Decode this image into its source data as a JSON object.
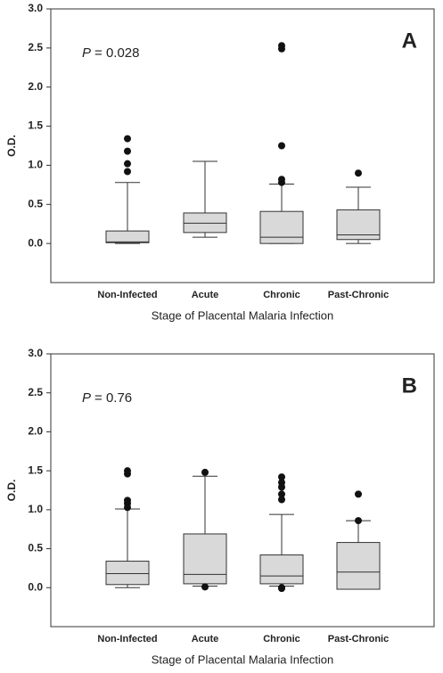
{
  "chart_data": [
    {
      "type": "box",
      "panel_label": "A",
      "annotation_variable": "P",
      "annotation_value": "= 0.028",
      "y_label": "O.D.",
      "x_label": "Stage of Placental Malaria Infection",
      "categories": [
        "Non-Infected",
        "Acute",
        "Chronic",
        "Past-Chronic"
      ],
      "color": "#d9d9d9",
      "boxes": [
        {
          "low": 0.0,
          "q1": 0.01,
          "median": 0.02,
          "q3": 0.16,
          "high": 0.78,
          "outliers": [
            0.92,
            1.02,
            1.18,
            1.34
          ]
        },
        {
          "low": 0.08,
          "q1": 0.14,
          "median": 0.26,
          "q3": 0.39,
          "high": 1.05,
          "outliers": []
        },
        {
          "low": 0.0,
          "q1": 0.0,
          "median": 0.08,
          "q3": 0.41,
          "high": 0.76,
          "outliers": [
            0.78,
            0.82,
            1.25,
            2.49,
            2.53
          ]
        },
        {
          "low": 0.0,
          "q1": 0.05,
          "median": 0.11,
          "q3": 0.43,
          "high": 0.72,
          "outliers": [
            0.9
          ]
        }
      ],
      "ylim": [
        -0.5,
        3.0
      ],
      "yticks": [
        {
          "value": 0,
          "label": "0.0"
        },
        {
          "value": 0.5,
          "label": "0.5"
        },
        {
          "value": 1,
          "label": "1.0"
        },
        {
          "value": 1.5,
          "label": "1.5"
        },
        {
          "value": 2,
          "label": "2.0"
        },
        {
          "value": 2.5,
          "label": "2.5"
        },
        {
          "value": 3,
          "label": "3.0"
        }
      ]
    },
    {
      "type": "box",
      "panel_label": "B",
      "annotation_variable": "P",
      "annotation_value": "= 0.76",
      "y_label": "O.D.",
      "x_label": "Stage of Placental Malaria Infection",
      "categories": [
        "Non-Infected",
        "Acute",
        "Chronic",
        "Past-Chronic"
      ],
      "color": "#d9d9d9",
      "boxes": [
        {
          "low": 0.0,
          "q1": 0.04,
          "median": 0.18,
          "q3": 0.34,
          "high": 1.01,
          "outliers": [
            1.03,
            1.08,
            1.12,
            1.46,
            1.5
          ]
        },
        {
          "low": 0.02,
          "q1": 0.05,
          "median": 0.17,
          "q3": 0.69,
          "high": 1.43,
          "outliers": [
            0.01,
            1.48
          ]
        },
        {
          "low": 0.02,
          "q1": 0.05,
          "median": 0.15,
          "q3": 0.42,
          "high": 0.94,
          "outliers": [
            0.0,
            -0.01,
            1.13,
            1.2,
            1.29,
            1.35,
            1.42
          ]
        },
        {
          "low": -0.02,
          "q1": -0.02,
          "median": 0.2,
          "q3": 0.58,
          "high": 0.86,
          "outliers": [
            0.86,
            1.2
          ]
        }
      ],
      "ylim": [
        -0.5,
        3.0
      ],
      "yticks": [
        {
          "value": 0,
          "label": "0.0"
        },
        {
          "value": 0.5,
          "label": "0.5"
        },
        {
          "value": 1,
          "label": "1.0"
        },
        {
          "value": 1.5,
          "label": "1.5"
        },
        {
          "value": 2,
          "label": "2.0"
        },
        {
          "value": 2.5,
          "label": "2.5"
        },
        {
          "value": 3,
          "label": "3.0"
        }
      ]
    }
  ]
}
